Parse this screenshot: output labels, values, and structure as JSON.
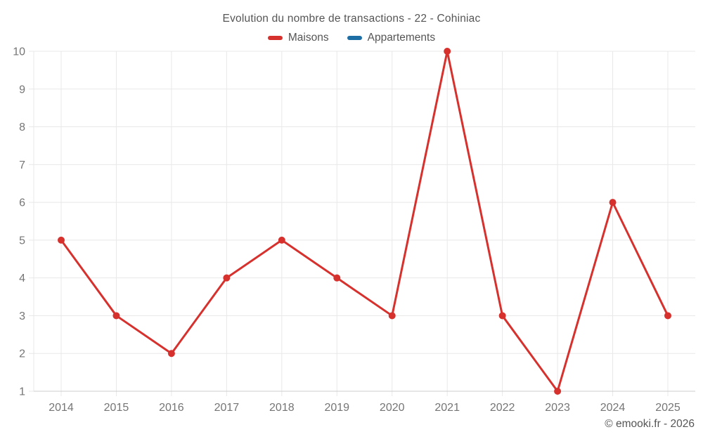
{
  "chart_data": {
    "type": "line",
    "title": "Evolution du nombre de transactions - 22 - Cohiniac",
    "categories": [
      "2014",
      "2015",
      "2016",
      "2017",
      "2018",
      "2019",
      "2020",
      "2021",
      "2022",
      "2023",
      "2024",
      "2025"
    ],
    "series": [
      {
        "name": "Maisons",
        "color": "#d7312e",
        "values": [
          5,
          3,
          2,
          4,
          5,
          4,
          3,
          10,
          3,
          1,
          6,
          3
        ]
      },
      {
        "name": "Appartements",
        "color": "#1c6ea4",
        "values": []
      }
    ],
    "xlabel": "",
    "ylabel": "",
    "ylim": [
      1,
      10
    ],
    "y_ticks": [
      1,
      2,
      3,
      4,
      5,
      6,
      7,
      8,
      9,
      10
    ],
    "grid": true,
    "legend_position": "top"
  },
  "attribution": "© emooki.fr - 2026",
  "colors": {
    "grid": "#e8e8e8",
    "axis_line": "#cccccc",
    "axis_label": "#757575",
    "title_text": "#555555"
  }
}
